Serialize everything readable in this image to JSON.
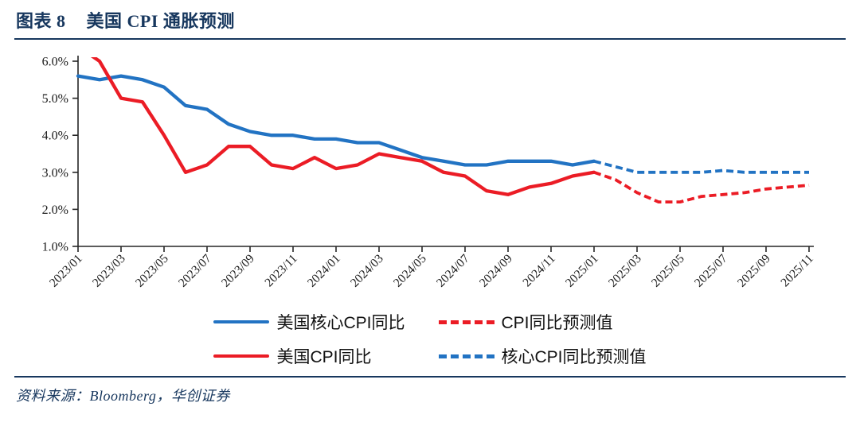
{
  "figure": {
    "tag": "图表 8",
    "title": "美国 CPI 通胀预测",
    "source": "资料来源：Bloomberg，华创证券"
  },
  "colors": {
    "navy": "#17375E",
    "blue": "#2273C3",
    "red": "#EB1C25",
    "axis": "#262626",
    "text": "#1a1a1a"
  },
  "chart_data": {
    "type": "line",
    "title": "美国 CPI 通胀预测",
    "x": [
      "2023/01",
      "2023/02",
      "2023/03",
      "2023/04",
      "2023/05",
      "2023/06",
      "2023/07",
      "2023/08",
      "2023/09",
      "2023/10",
      "2023/11",
      "2023/12",
      "2024/01",
      "2024/02",
      "2024/03",
      "2024/04",
      "2024/05",
      "2024/06",
      "2024/07",
      "2024/08",
      "2024/09",
      "2024/10",
      "2024/11",
      "2024/12",
      "2025/01",
      "2025/02",
      "2025/03",
      "2025/04",
      "2025/05",
      "2025/06",
      "2025/07",
      "2025/08",
      "2025/09",
      "2025/10",
      "2025/11"
    ],
    "x_tick_labels": [
      "2023/01",
      "2023/03",
      "2023/05",
      "2023/07",
      "2023/09",
      "2023/11",
      "2024/01",
      "2024/03",
      "2024/05",
      "2024/07",
      "2024/09",
      "2024/11",
      "2025/01",
      "2025/03",
      "2025/05",
      "2025/07",
      "2025/09",
      "2025/11"
    ],
    "ylim": [
      1.0,
      6.0
    ],
    "grid": false,
    "legend_position": "bottom",
    "y_ticks": [
      {
        "label": "6.0%",
        "value": 6.0
      },
      {
        "label": "5.0%",
        "value": 5.0
      },
      {
        "label": "4.0%",
        "value": 4.0
      },
      {
        "label": "3.0%",
        "value": 3.0
      },
      {
        "label": "2.0%",
        "value": 2.0
      },
      {
        "label": "1.0%",
        "value": 1.0
      }
    ],
    "series": [
      {
        "id": "core-cpi-yoy",
        "name": "美国核心CPI同比",
        "color": "blue",
        "dash": false,
        "start_index": 0,
        "values": [
          5.6,
          5.5,
          5.6,
          5.5,
          5.3,
          4.8,
          4.7,
          4.3,
          4.1,
          4.0,
          4.0,
          3.9,
          3.9,
          3.8,
          3.8,
          3.6,
          3.4,
          3.3,
          3.2,
          3.2,
          3.3,
          3.3,
          3.3,
          3.2,
          3.3
        ]
      },
      {
        "id": "cpi-yoy",
        "name": "美国CPI同比",
        "color": "red",
        "dash": false,
        "start_index": 0,
        "values": [
          6.4,
          6.0,
          5.0,
          4.9,
          4.0,
          3.0,
          3.2,
          3.7,
          3.7,
          3.2,
          3.1,
          3.4,
          3.1,
          3.2,
          3.5,
          3.4,
          3.3,
          3.0,
          2.9,
          2.5,
          2.4,
          2.6,
          2.7,
          2.9,
          3.0
        ]
      },
      {
        "id": "cpi-forecast",
        "name": "CPI同比预测值",
        "color": "red",
        "dash": true,
        "start_index": 24,
        "values": [
          3.0,
          2.8,
          2.45,
          2.2,
          2.2,
          2.35,
          2.4,
          2.45,
          2.55,
          2.6,
          2.65
        ]
      },
      {
        "id": "core-cpi-forecast",
        "name": "核心CPI同比预测值",
        "color": "blue",
        "dash": true,
        "start_index": 24,
        "values": [
          3.3,
          3.15,
          3.0,
          3.0,
          3.0,
          3.0,
          3.05,
          3.0,
          3.0,
          3.0,
          3.0
        ]
      }
    ],
    "legend": {
      "items": [
        {
          "id": "core-cpi-yoy",
          "label": "美国核心CPI同比",
          "color": "blue",
          "dash": false
        },
        {
          "id": "cpi-forecast",
          "label": "CPI同比预测值",
          "color": "red",
          "dash": true
        },
        {
          "id": "cpi-yoy",
          "label": "美国CPI同比",
          "color": "red",
          "dash": false
        },
        {
          "id": "core-cpi-forecast",
          "label": "核心CPI同比预测值",
          "color": "blue",
          "dash": true
        }
      ]
    }
  }
}
